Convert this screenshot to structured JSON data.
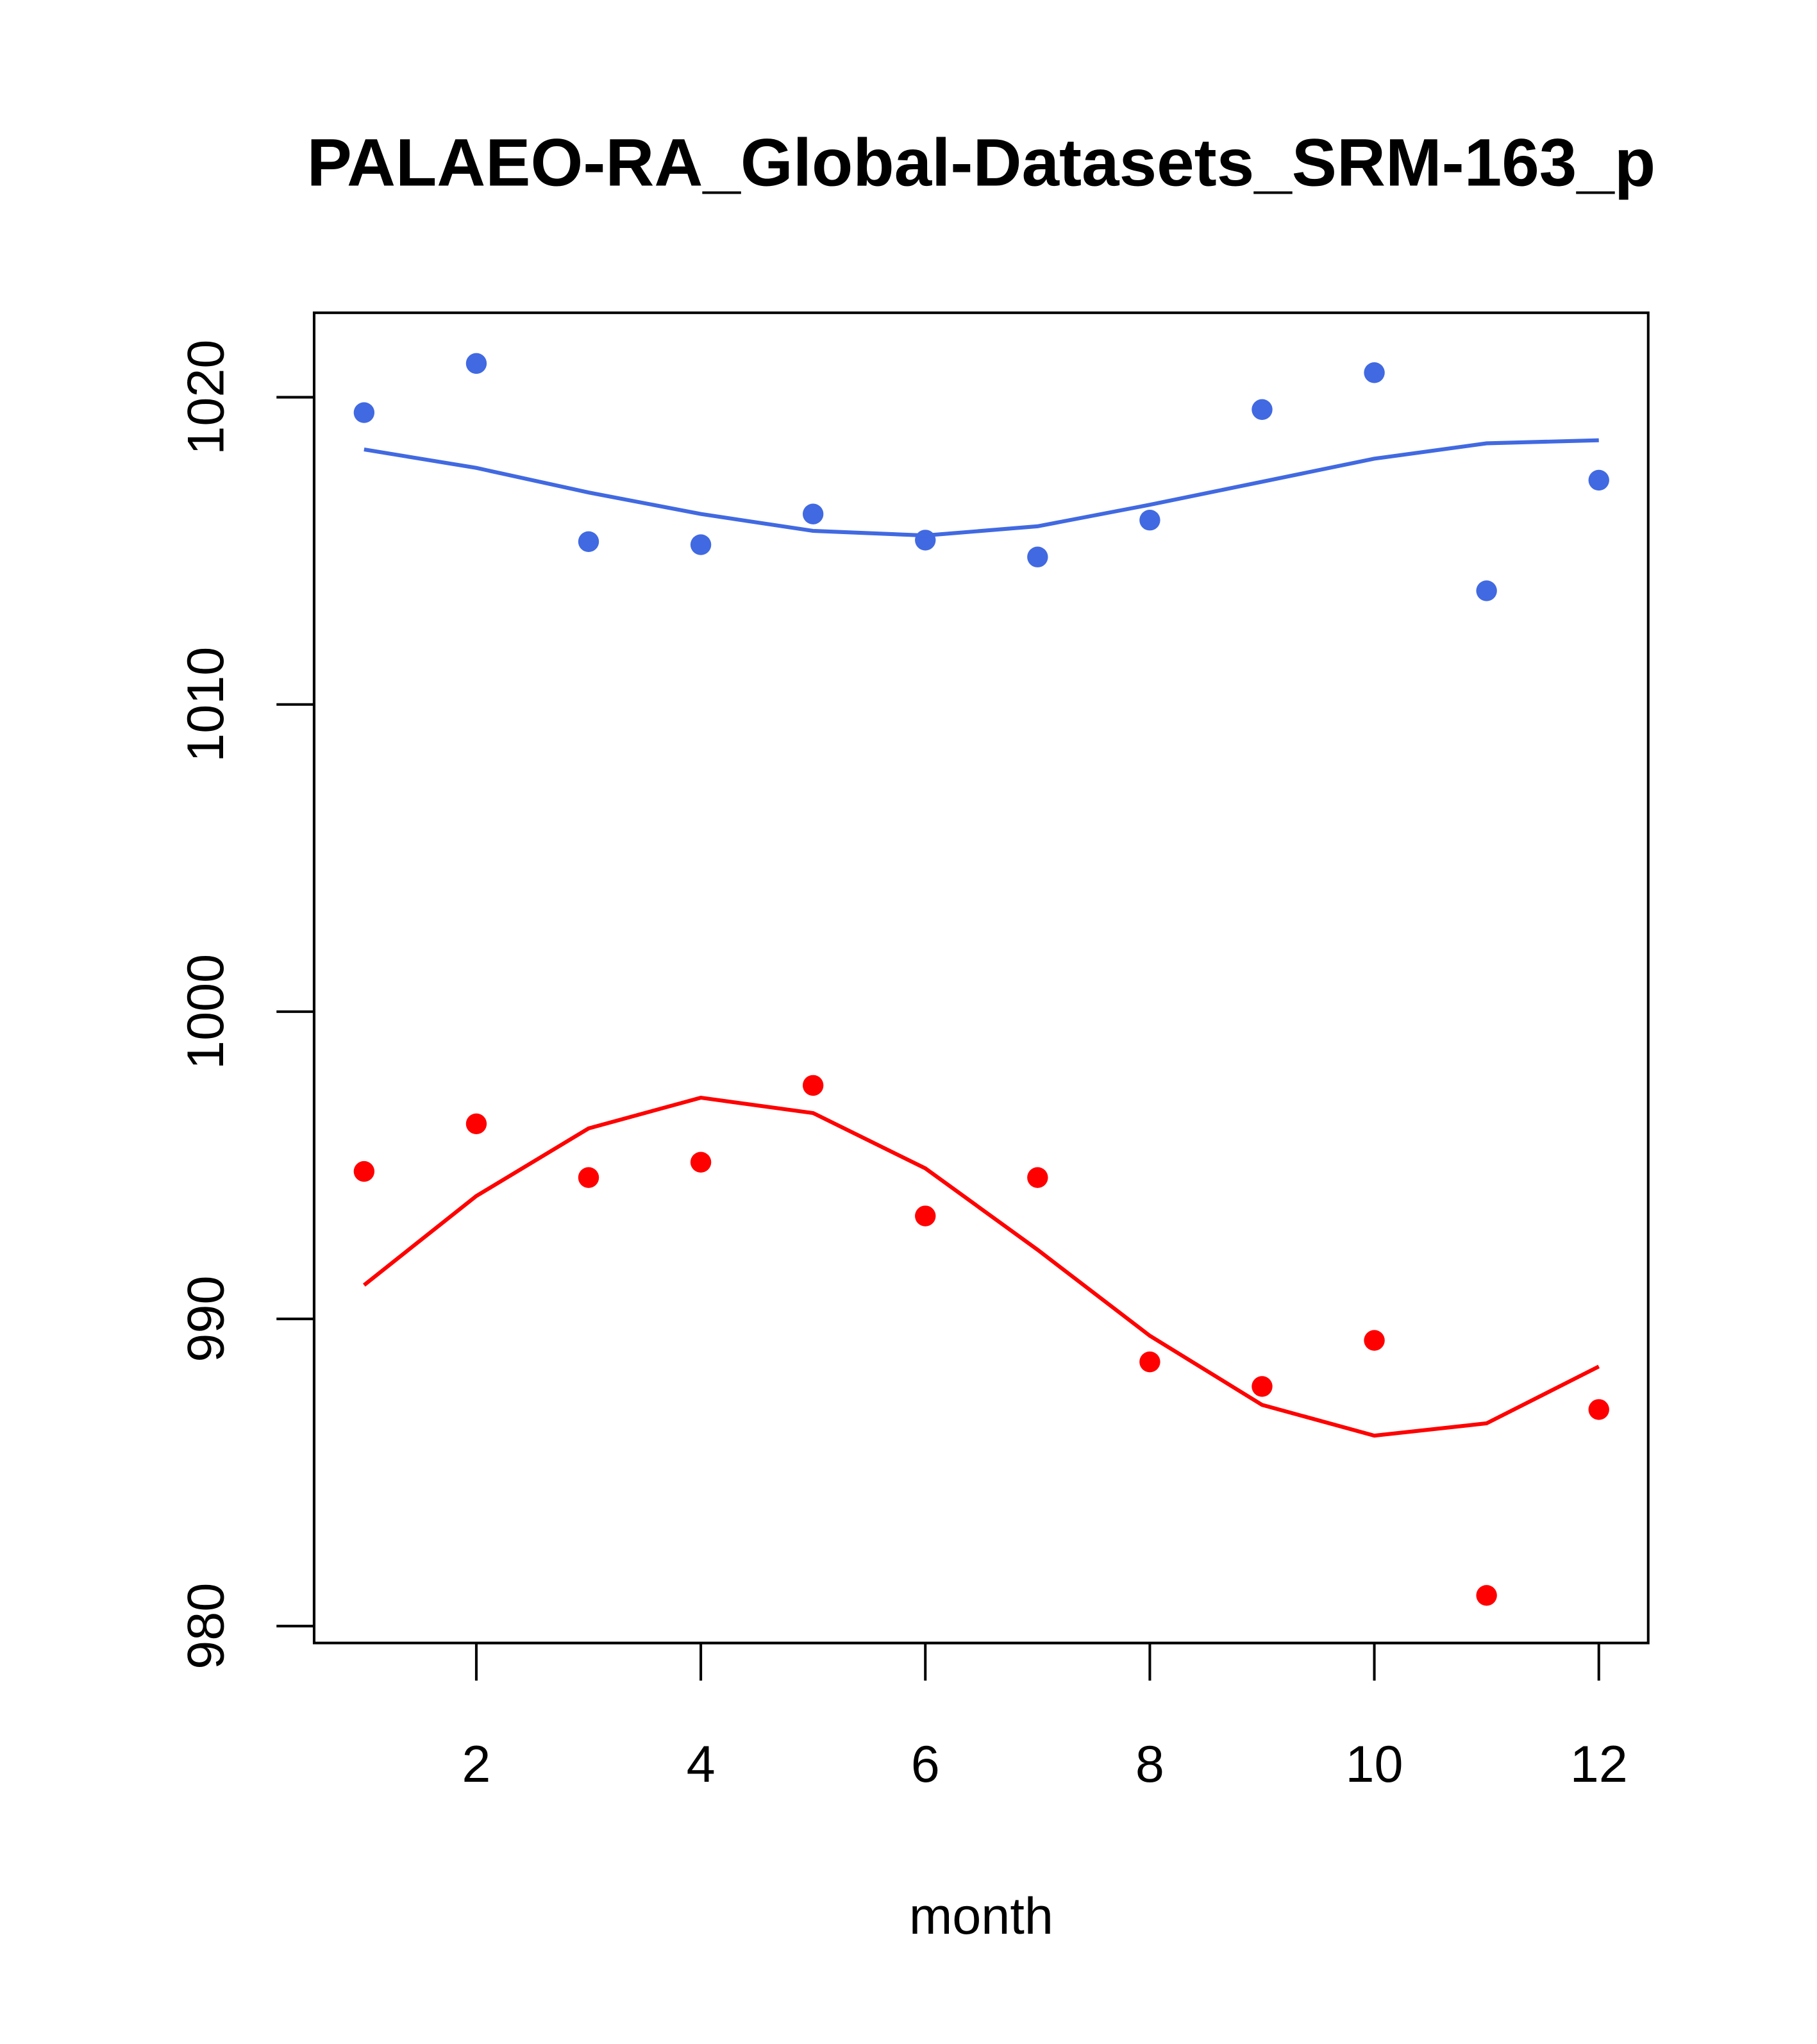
{
  "chart_data": {
    "type": "scatter",
    "title": "PALAEO-RA_Global-Datasets_SRM-163_p",
    "xlabel": "month",
    "ylabel": "",
    "xlim": [
      0.555,
      12.44
    ],
    "ylim": [
      979.45,
      1022.75
    ],
    "xticks": [
      2,
      4,
      6,
      8,
      10,
      12
    ],
    "xtick_labels": [
      "2",
      "4",
      "6",
      "8",
      "10",
      "12"
    ],
    "yticks": [
      980,
      990,
      1000,
      1010,
      1020
    ],
    "ytick_labels": [
      "980",
      "990",
      "1000",
      "1010",
      "1020"
    ],
    "grid": false,
    "x": [
      1,
      2,
      3,
      4,
      5,
      6,
      7,
      8,
      9,
      10,
      11,
      12
    ],
    "series": [
      {
        "name": "blue points",
        "kind": "points",
        "color": "#4169E1",
        "values": [
          1019.5,
          1021.1,
          1015.3,
          1015.2,
          1016.2,
          1015.35,
          1014.8,
          1016.0,
          1019.6,
          1020.8,
          1013.7,
          1017.3
        ]
      },
      {
        "name": "blue line",
        "kind": "line",
        "color": "#4169E1",
        "values": [
          1018.3,
          1017.7,
          1016.9,
          1016.2,
          1015.65,
          1015.5,
          1015.8,
          1016.5,
          1017.25,
          1018.0,
          1018.5,
          1018.6
        ]
      },
      {
        "name": "red points",
        "kind": "points",
        "color": "#FF0000",
        "values": [
          994.8,
          996.35,
          994.6,
          995.1,
          997.6,
          993.35,
          994.6,
          988.6,
          987.8,
          989.3,
          981.0,
          987.05
        ]
      },
      {
        "name": "red line",
        "kind": "line",
        "color": "#FF0000",
        "values": [
          991.1,
          994.0,
          996.2,
          997.2,
          996.7,
          994.9,
          992.25,
          989.45,
          987.2,
          986.2,
          986.6,
          988.45
        ]
      }
    ]
  }
}
